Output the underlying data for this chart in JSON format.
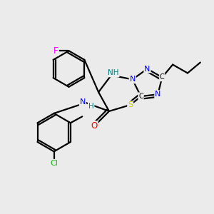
{
  "background_color": "#ebebeb",
  "atom_colors": {
    "C": "#000000",
    "N": "#0000ff",
    "O": "#ff0000",
    "S": "#cccc00",
    "F": "#ff00ff",
    "Cl": "#00bb00",
    "H_teal": "#008080"
  },
  "bond_color": "#000000",
  "bond_width": 1.6,
  "figsize": [
    3.0,
    3.0
  ],
  "dpi": 100
}
